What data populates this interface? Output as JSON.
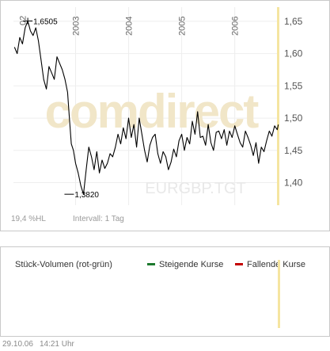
{
  "chart_data": {
    "type": "line",
    "instrument_watermark": "EURGBP.TGT",
    "brand_watermark": "comdirect",
    "x_tick_labels": [
      "2003",
      "2004",
      "2005",
      "2006"
    ],
    "y_tick_labels": [
      "1,65",
      "1,60",
      "1,55",
      "1,50",
      "1,45",
      "1,40"
    ],
    "y_ticks": [
      1.65,
      1.6,
      1.55,
      1.5,
      1.45,
      1.4
    ],
    "ylim": [
      1.365,
      1.672
    ],
    "xlim": [
      2001.83,
      2006.84
    ],
    "grid": true,
    "annotations": {
      "high": {
        "label": "1,6505",
        "x": 2002.1,
        "y": 1.6505
      },
      "low": {
        "label": "1,3820",
        "x": 2002.88,
        "y": 1.382
      },
      "first_x_label_partial": "02"
    },
    "series": [
      {
        "x": [
          2001.85,
          2001.9,
          2001.95,
          2002.0,
          2002.05,
          2002.1,
          2002.15,
          2002.2,
          2002.25,
          2002.3,
          2002.35,
          2002.4,
          2002.45,
          2002.5,
          2002.55,
          2002.6,
          2002.65,
          2002.7,
          2002.75,
          2002.8,
          2002.85,
          2002.88,
          2002.92,
          2002.96,
          2003.0,
          2003.05,
          2003.1,
          2003.15,
          2003.2,
          2003.25,
          2003.3,
          2003.35,
          2003.4,
          2003.45,
          2003.5,
          2003.55,
          2003.6,
          2003.65,
          2003.7,
          2003.75,
          2003.8,
          2003.85,
          2003.9,
          2003.95,
          2004.0,
          2004.05,
          2004.1,
          2004.15,
          2004.2,
          2004.25,
          2004.3,
          2004.35,
          2004.4,
          2004.45,
          2004.5,
          2004.55,
          2004.6,
          2004.65,
          2004.7,
          2004.75,
          2004.8,
          2004.85,
          2004.9,
          2004.95,
          2005.0,
          2005.05,
          2005.1,
          2005.15,
          2005.2,
          2005.25,
          2005.3,
          2005.35,
          2005.4,
          2005.45,
          2005.5,
          2005.55,
          2005.6,
          2005.65,
          2005.7,
          2005.75,
          2005.8,
          2005.85,
          2005.9,
          2005.95,
          2006.0,
          2006.05,
          2006.1,
          2006.15,
          2006.2,
          2006.25,
          2006.3,
          2006.35,
          2006.4,
          2006.45,
          2006.5,
          2006.55,
          2006.6,
          2006.65,
          2006.7,
          2006.75,
          2006.8,
          2006.82
        ],
        "y": [
          1.61,
          1.6,
          1.625,
          1.615,
          1.64,
          1.6505,
          1.635,
          1.628,
          1.64,
          1.62,
          1.59,
          1.56,
          1.545,
          1.58,
          1.57,
          1.56,
          1.595,
          1.585,
          1.575,
          1.56,
          1.54,
          1.505,
          1.46,
          1.45,
          1.43,
          1.415,
          1.395,
          1.382,
          1.42,
          1.455,
          1.44,
          1.42,
          1.448,
          1.415,
          1.435,
          1.422,
          1.43,
          1.445,
          1.44,
          1.455,
          1.475,
          1.46,
          1.485,
          1.468,
          1.5,
          1.47,
          1.49,
          1.455,
          1.5,
          1.475,
          1.45,
          1.432,
          1.458,
          1.47,
          1.475,
          1.445,
          1.43,
          1.448,
          1.44,
          1.42,
          1.432,
          1.452,
          1.44,
          1.465,
          1.475,
          1.45,
          1.47,
          1.46,
          1.495,
          1.475,
          1.51,
          1.47,
          1.472,
          1.458,
          1.49,
          1.462,
          1.45,
          1.478,
          1.48,
          1.468,
          1.482,
          1.458,
          1.48,
          1.47,
          1.488,
          1.475,
          1.462,
          1.455,
          1.48,
          1.47,
          1.458,
          1.442,
          1.462,
          1.43,
          1.455,
          1.448,
          1.465,
          1.48,
          1.472,
          1.488,
          1.482,
          1.49
        ]
      }
    ]
  },
  "price_panel": {
    "range_label": "19,4 %HL",
    "interval_label": "Intervall: 1 Tag"
  },
  "volume_panel": {
    "title": "Stück-Volumen (rot-grün)",
    "legend_rising": "Steigende Kurse",
    "legend_falling": "Fallende Kurse",
    "colors": {
      "rising": "#1d7a2e",
      "falling": "#c40000"
    }
  },
  "footer": {
    "date": "29.10.06",
    "time": "14:21 Uhr"
  }
}
